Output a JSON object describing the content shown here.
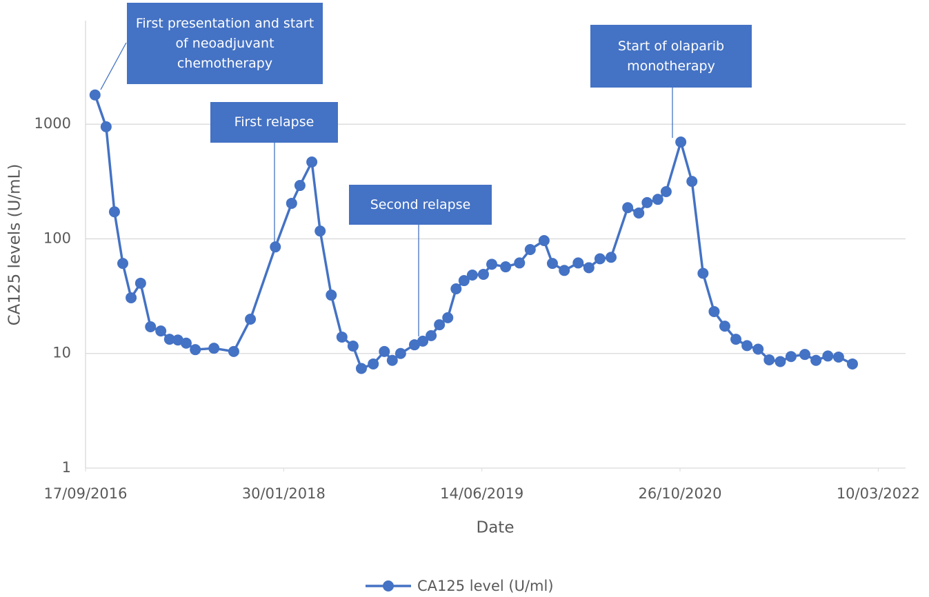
{
  "chart_data": {
    "type": "line",
    "log_y": true,
    "grid": true,
    "y_label": "CA125 levels (U/mL)",
    "x_label": "Date",
    "x": [
      "2016-10-11",
      "2016-11-08",
      "2016-11-29",
      "2016-12-20",
      "2017-01-10",
      "2017-02-03",
      "2017-02-28",
      "2017-03-26",
      "2017-04-17",
      "2017-05-08",
      "2017-05-29",
      "2017-06-21",
      "2017-08-07",
      "2017-09-26",
      "2017-11-07",
      "2018-01-09",
      "2018-02-19",
      "2018-03-12",
      "2018-04-11",
      "2018-05-02",
      "2018-05-30",
      "2018-06-26",
      "2018-07-24",
      "2018-08-14",
      "2018-09-13",
      "2018-10-11",
      "2018-10-31",
      "2018-11-21",
      "2018-12-26",
      "2019-01-16",
      "2019-02-06",
      "2019-02-27",
      "2019-03-20",
      "2019-04-10",
      "2019-04-30",
      "2019-05-21",
      "2019-06-18",
      "2019-07-09",
      "2019-08-13",
      "2019-09-17",
      "2019-10-14",
      "2019-11-18",
      "2019-12-09",
      "2020-01-08",
      "2020-02-12",
      "2020-03-10",
      "2020-04-07",
      "2020-05-05",
      "2020-06-16",
      "2020-07-14",
      "2020-08-04",
      "2020-08-31",
      "2020-09-21",
      "2020-10-28",
      "2020-11-25",
      "2020-12-23",
      "2021-01-20",
      "2021-02-16",
      "2021-03-16",
      "2021-04-13",
      "2021-05-11",
      "2021-06-08",
      "2021-07-06",
      "2021-08-02",
      "2021-09-06",
      "2021-10-04",
      "2021-11-03",
      "2021-11-30",
      "2022-01-04"
    ],
    "series": [
      {
        "name": "CA125 level (U/ml)",
        "color": "#4472c4",
        "values": [
          1800,
          950,
          172,
          61,
          30.6,
          41,
          17.1,
          15.7,
          13.3,
          13.1,
          12.3,
          10.8,
          11.1,
          10.4,
          19.9,
          85,
          204,
          292,
          468,
          117,
          32.3,
          13.9,
          11.6,
          7.4,
          8.1,
          10.4,
          8.7,
          10,
          11.9,
          12.8,
          14.3,
          17.8,
          20.5,
          36.6,
          43.2,
          48.3,
          49,
          60,
          57,
          61.6,
          80.6,
          96.5,
          61,
          53,
          61.6,
          56,
          67,
          69,
          187,
          168,
          207,
          221,
          258,
          699,
          317,
          50,
          23.2,
          17.3,
          13.3,
          11.7,
          10.9,
          8.8,
          8.5,
          9.4,
          9.8,
          8.7,
          9.5,
          9.3,
          8.1
        ]
      }
    ],
    "xlim": [
      "2016-09-17",
      "2022-05-18"
    ],
    "xticks": [
      {
        "value": "2016-09-17",
        "label": "17/09/2016"
      },
      {
        "value": "2018-01-30",
        "label": "30/01/2018"
      },
      {
        "value": "2019-06-14",
        "label": "14/06/2019"
      },
      {
        "value": "2020-10-26",
        "label": "26/10/2020"
      },
      {
        "value": "2022-03-10",
        "label": "10/03/2022"
      }
    ],
    "ylim": [
      1,
      8000
    ],
    "yticks": [
      1,
      10,
      100,
      1000
    ],
    "annotations": [
      "First presentation and start of neoadjuvant chemotherapy",
      "First relapse",
      "Second relapse",
      "Start of olaparib monotherapy"
    ],
    "legend": "bottom"
  }
}
